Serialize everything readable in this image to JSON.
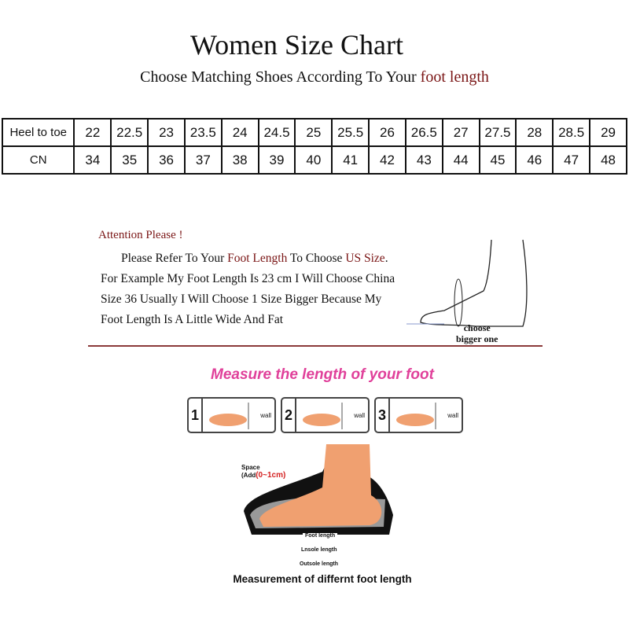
{
  "title": "Women Size Chart",
  "subtitle": {
    "prefix": "Choose Matching Shoes According To Your ",
    "highlight": "foot length"
  },
  "table": {
    "rows": [
      {
        "label": "Heel to toe",
        "values": [
          "22",
          "22.5",
          "23",
          "23.5",
          "24",
          "24.5",
          "25",
          "25.5",
          "26",
          "26.5",
          "27",
          "27.5",
          "28",
          "28.5",
          "29"
        ]
      },
      {
        "label": "CN",
        "values": [
          "34",
          "35",
          "36",
          "37",
          "38",
          "39",
          "40",
          "41",
          "42",
          "43",
          "44",
          "45",
          "46",
          "47",
          "48"
        ]
      }
    ]
  },
  "attention": {
    "heading": "Attention Please !",
    "line1_a": "Please Refer To Your ",
    "line1_b": "Foot Length",
    "line1_c": " To Choose ",
    "line1_d": "US Size",
    ".": ".",
    "line2": "For Example My Foot Length Is 23 cm I Will Choose China",
    "line3": "Size  36 Usually I Will Choose 1 Size Bigger Because My",
    "line4": "Foot Length Is A Little Wide And Fat",
    "foot_caption_1": "choose",
    "foot_caption_2": "bigger one"
  },
  "measure": {
    "title": "Measure the length of your foot",
    "steps": [
      {
        "n": "1",
        "wall": "wall"
      },
      {
        "n": "2",
        "wall": "wall"
      },
      {
        "n": "3",
        "wall": "wall"
      }
    ],
    "space_label": "Space",
    "space_add": "(Add",
    "space_range": "(0~1cm)",
    "foot_length": "Foot length",
    "insole_length": "Lnsole length",
    "outsole_length": "Outsole length",
    "caption": "Measurement of differnt foot length"
  },
  "colors": {
    "accent_red": "#7a1515",
    "pink": "#e0409a",
    "skin": "#f0a070"
  }
}
